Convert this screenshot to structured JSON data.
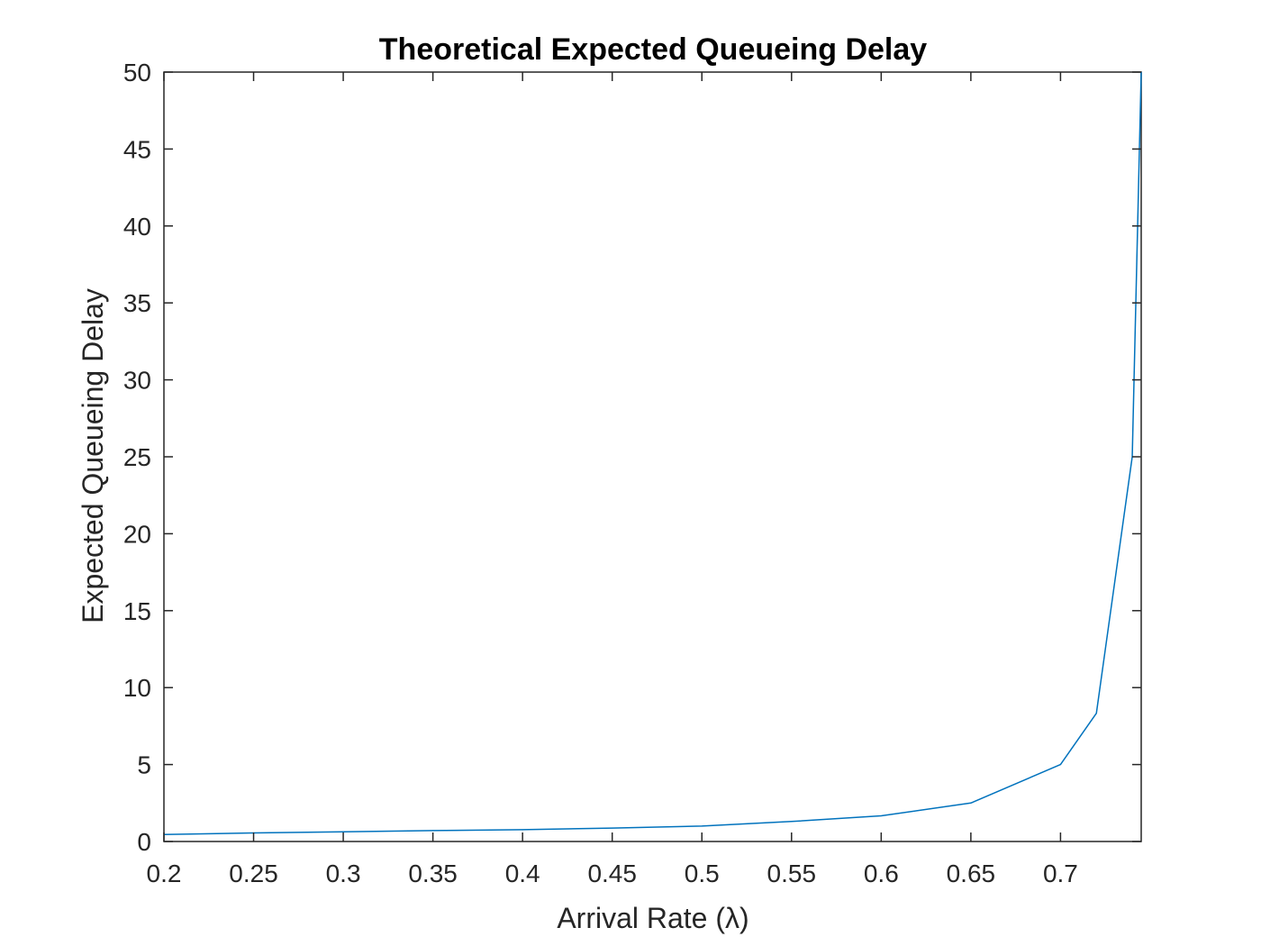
{
  "chart_data": {
    "type": "line",
    "title": "Theoretical Expected Queueing Delay",
    "xlabel": "Arrival Rate (λ)",
    "ylabel": "Expected Queueing Delay",
    "xlim": [
      0.2,
      0.745
    ],
    "ylim": [
      0,
      50
    ],
    "x_ticks": [
      0.2,
      0.25,
      0.3,
      0.35,
      0.4,
      0.45,
      0.5,
      0.55,
      0.6,
      0.65,
      0.7
    ],
    "x_tick_labels": [
      "0.2",
      "0.25",
      "0.3",
      "0.35",
      "0.4",
      "0.45",
      "0.5",
      "0.55",
      "0.6",
      "0.65",
      "0.7"
    ],
    "y_ticks": [
      0,
      5,
      10,
      15,
      20,
      25,
      30,
      35,
      40,
      45,
      50
    ],
    "y_tick_labels": [
      "0",
      "5",
      "10",
      "15",
      "20",
      "25",
      "30",
      "35",
      "40",
      "45",
      "50"
    ],
    "grid": false,
    "series": [
      {
        "color": "#0072BD",
        "x": [
          0.2,
          0.25,
          0.3,
          0.35,
          0.4,
          0.45,
          0.5,
          0.55,
          0.6,
          0.65,
          0.7,
          0.72,
          0.74,
          0.745
        ],
        "y": [
          0.45,
          0.56,
          0.63,
          0.71,
          0.77,
          0.87,
          1.0,
          1.3,
          1.67,
          2.5,
          5.0,
          8.33,
          25.0,
          50.0
        ]
      }
    ],
    "axis_color": "#262626"
  }
}
